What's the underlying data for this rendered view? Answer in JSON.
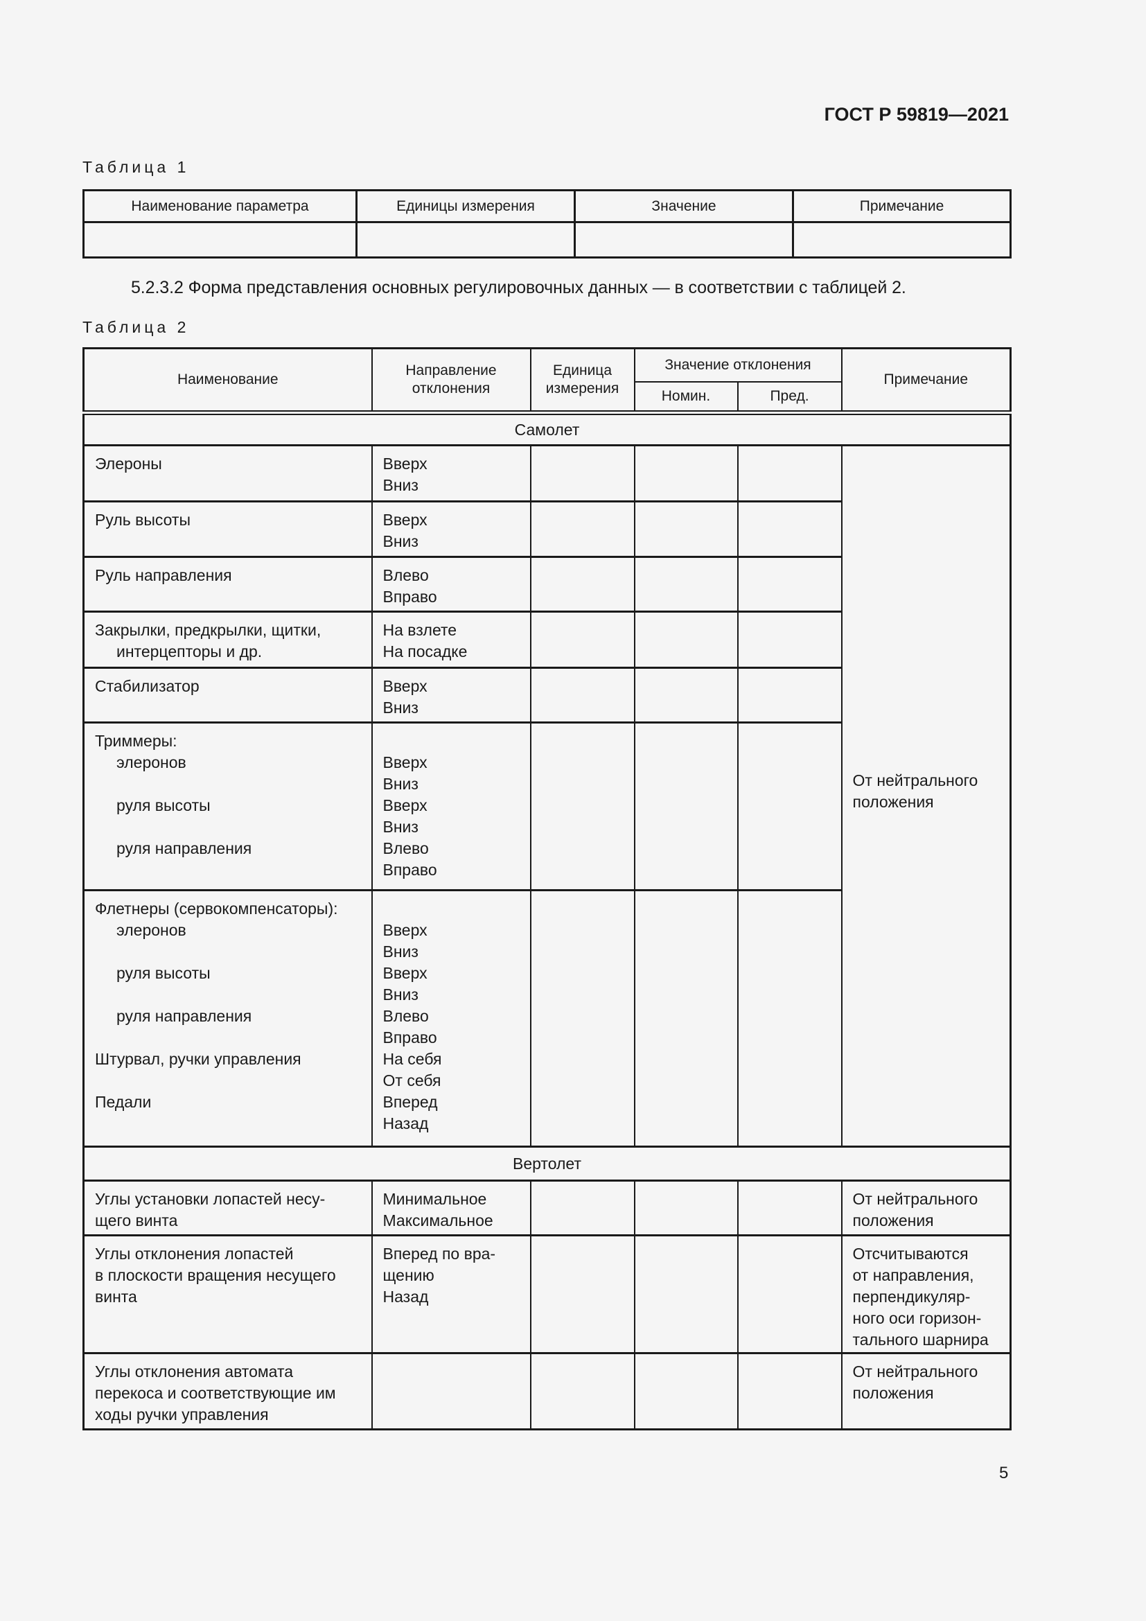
{
  "header": {
    "doc_code": "ГОСТ Р 59819—2021"
  },
  "table1": {
    "caption": "Таблица 1",
    "columns": [
      "Наименование параметра",
      "Единицы измерения",
      "Значение",
      "Примечание"
    ]
  },
  "paragraph": "5.2.3.2 Форма представления основных регулировочных данных — в соответствии с таблицей 2.",
  "table2": {
    "caption": "Таблица 2",
    "columns": {
      "name": "Наименование",
      "direction": "Направление отклонения",
      "unit": "Единица измерения",
      "value_group": "Значение отклонения",
      "nominal": "Номин.",
      "limit": "Пред.",
      "note": "Примечание"
    },
    "section_airplane": "Самолет",
    "airplane_note": [
      "От нейтрального",
      "положения"
    ],
    "airplane_rows": [
      {
        "name": [
          "Элероны"
        ],
        "direction": [
          "Вверх",
          "Вниз"
        ]
      },
      {
        "name": [
          "Руль высоты"
        ],
        "direction": [
          "Вверх",
          "Вниз"
        ]
      },
      {
        "name": [
          "Руль направления"
        ],
        "direction": [
          "Влево",
          "Вправо"
        ]
      },
      {
        "name": [
          "Закрылки, предкрылки, щитки,",
          "интерцепторы и др."
        ],
        "direction": [
          "На взлете",
          "На посадке"
        ]
      },
      {
        "name": [
          "Стабилизатор"
        ],
        "direction": [
          "Вверх",
          "Вниз"
        ]
      },
      {
        "name": [
          "Триммеры:",
          "элеронов",
          "",
          "руля высоты",
          "",
          "руля направления"
        ],
        "direction": [
          "",
          "Вверх",
          "Вниз",
          "Вверх",
          "Вниз",
          "Влево",
          "Вправо"
        ]
      },
      {
        "name": [
          "Флетнеры (сервокомпенсаторы):",
          "элеронов",
          "",
          "руля высоты",
          "",
          "руля направления",
          "",
          "Штурвал, ручки управления",
          "",
          "Педали"
        ],
        "direction": [
          "",
          "Вверх",
          "Вниз",
          "Вверх",
          "Вниз",
          "Влево",
          "Вправо",
          "На себя",
          "От себя",
          "Вперед",
          "Назад"
        ]
      }
    ],
    "section_helicopter": "Вертолет",
    "helicopter_rows": [
      {
        "name": [
          "Углы установки лопастей несу-",
          "щего винта"
        ],
        "direction": [
          "Минимальное",
          "Максимальное"
        ],
        "note": [
          "От нейтрального",
          "положения"
        ]
      },
      {
        "name": [
          "Углы отклонения лопастей",
          "в плоскости вращения несущего",
          "винта"
        ],
        "direction": [
          "Вперед по вра-",
          "щению",
          "Назад"
        ],
        "note": [
          "Отсчитываются",
          "от направления,",
          "перпендикуляр-",
          "ного оси горизон-",
          "тального шарнира"
        ]
      },
      {
        "name": [
          "Углы отклонения автомата",
          "перекоса и соответствующие им",
          "ходы ручки управления"
        ],
        "direction": [],
        "note": [
          "От нейтрального",
          "положения"
        ]
      }
    ]
  },
  "page_number": "5"
}
